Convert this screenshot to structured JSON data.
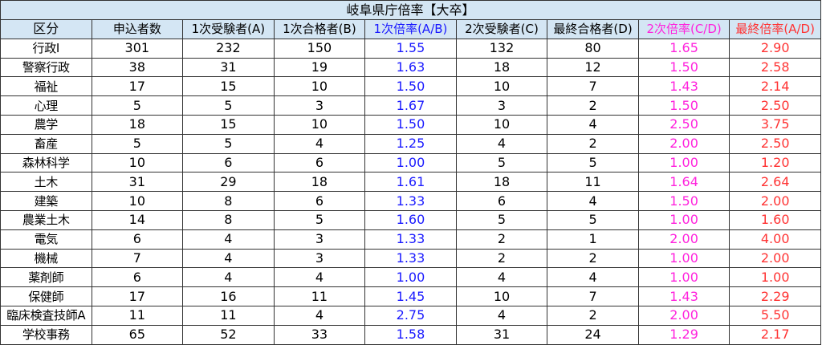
{
  "title": "岐阜県庁倍率【大卒】",
  "colors": {
    "header_bg": "#d4e6f4",
    "ratio1": "#1a1aff",
    "ratio2": "#ff22dd",
    "ratio_final": "#ff3333"
  },
  "columns": [
    "区分",
    "申込者数",
    "1次受験者(A)",
    "1次合格者(B)",
    "1次倍率(A/B)",
    "2次受験者(C)",
    "最終合格者(D)",
    "2次倍率(C/D)",
    "最終倍率(A/D)"
  ],
  "rows": [
    [
      "行政Ⅰ",
      "301",
      "232",
      "150",
      "1.55",
      "132",
      "80",
      "1.65",
      "2.90"
    ],
    [
      "警察行政",
      "38",
      "31",
      "19",
      "1.63",
      "18",
      "12",
      "1.50",
      "2.58"
    ],
    [
      "福祉",
      "17",
      "15",
      "10",
      "1.50",
      "10",
      "7",
      "1.43",
      "2.14"
    ],
    [
      "心理",
      "5",
      "5",
      "3",
      "1.67",
      "3",
      "2",
      "1.50",
      "2.50"
    ],
    [
      "農学",
      "18",
      "15",
      "10",
      "1.50",
      "10",
      "4",
      "2.50",
      "3.75"
    ],
    [
      "畜産",
      "5",
      "5",
      "4",
      "1.25",
      "4",
      "2",
      "2.00",
      "2.50"
    ],
    [
      "森林科学",
      "10",
      "6",
      "6",
      "1.00",
      "5",
      "5",
      "1.00",
      "1.20"
    ],
    [
      "土木",
      "31",
      "29",
      "18",
      "1.61",
      "18",
      "11",
      "1.64",
      "2.64"
    ],
    [
      "建築",
      "10",
      "8",
      "6",
      "1.33",
      "6",
      "4",
      "1.50",
      "2.00"
    ],
    [
      "農業土木",
      "14",
      "8",
      "5",
      "1.60",
      "5",
      "5",
      "1.00",
      "1.60"
    ],
    [
      "電気",
      "6",
      "4",
      "3",
      "1.33",
      "2",
      "1",
      "2.00",
      "4.00"
    ],
    [
      "機械",
      "7",
      "4",
      "3",
      "1.33",
      "2",
      "2",
      "1.00",
      "2.00"
    ],
    [
      "薬剤師",
      "6",
      "4",
      "4",
      "1.00",
      "4",
      "4",
      "1.00",
      "1.00"
    ],
    [
      "保健師",
      "17",
      "16",
      "11",
      "1.45",
      "10",
      "7",
      "1.43",
      "2.29"
    ],
    [
      "臨床検査技師A",
      "11",
      "11",
      "4",
      "2.75",
      "4",
      "2",
      "2.00",
      "5.50"
    ],
    [
      "学校事務",
      "65",
      "52",
      "33",
      "1.58",
      "31",
      "24",
      "1.29",
      "2.17"
    ]
  ]
}
